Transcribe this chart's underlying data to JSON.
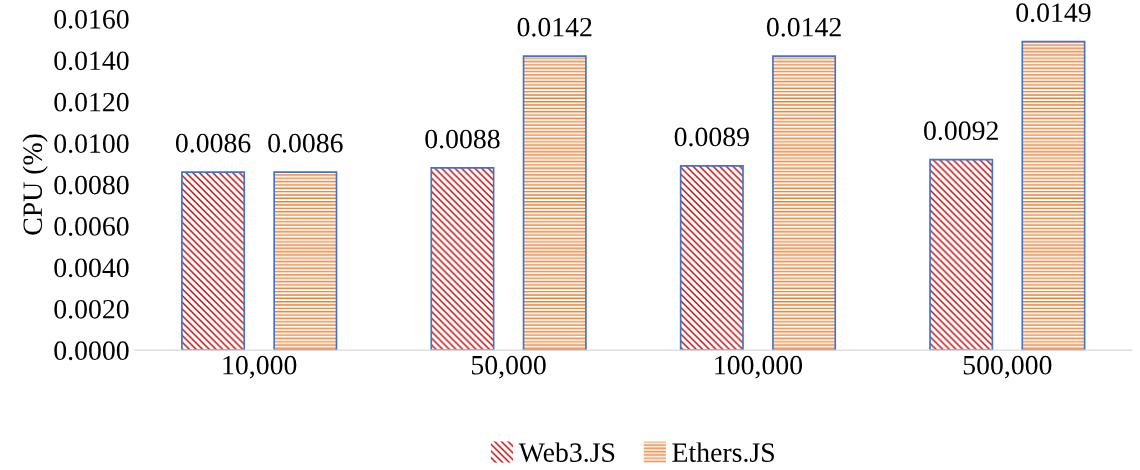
{
  "chart_data": {
    "type": "bar",
    "ylabel": "CPU (%)",
    "categories": [
      "10,000",
      "50,000",
      "100,000",
      "500,000"
    ],
    "series": [
      {
        "name": "Web3.JS",
        "color": "#c00000",
        "values": [
          0.0086,
          0.0088,
          0.0089,
          0.0092
        ]
      },
      {
        "name": "Ethers.JS",
        "color": "#ed7d31",
        "values": [
          0.0086,
          0.0142,
          0.0142,
          0.0149
        ]
      }
    ],
    "ylim": [
      0,
      0.016
    ],
    "yticks": [
      {
        "value": 0,
        "label": "0.0000"
      },
      {
        "value": 0.002,
        "label": "0.0020"
      },
      {
        "value": 0.004,
        "label": "0.0040"
      },
      {
        "value": 0.006,
        "label": "0.0060"
      },
      {
        "value": 0.008,
        "label": "0.0080"
      },
      {
        "value": 0.01,
        "label": "0.0100"
      },
      {
        "value": 0.012,
        "label": "0.0120"
      },
      {
        "value": 0.014,
        "label": "0.0140"
      },
      {
        "value": 0.016,
        "label": "0.0160"
      }
    ],
    "data_labels": true,
    "grid": false,
    "legend": "bottom"
  }
}
